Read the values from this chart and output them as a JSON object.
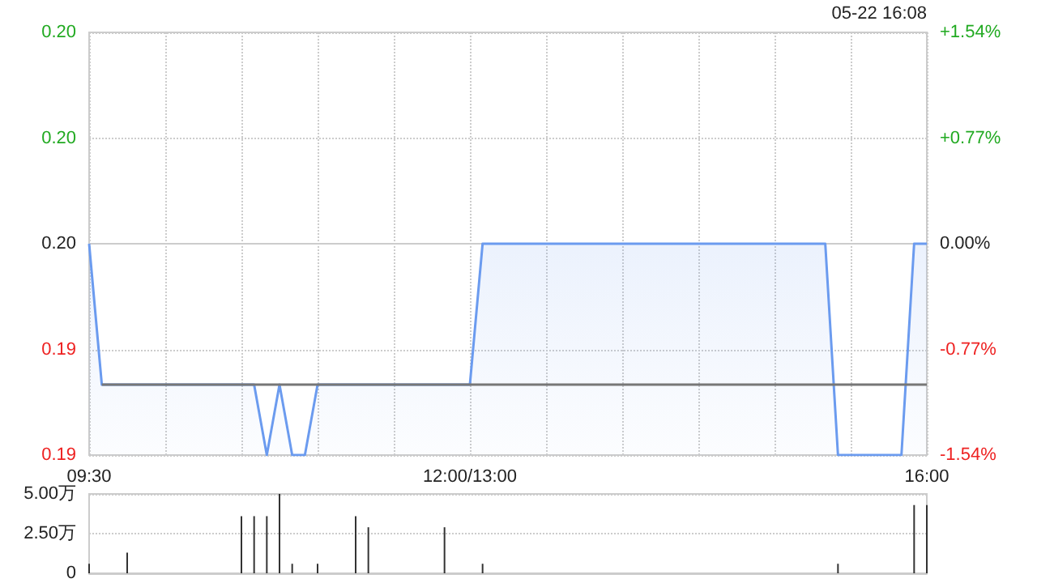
{
  "chart_data": [
    {
      "type": "area",
      "annotations": [
        "05-22 16:08"
      ],
      "grid": true,
      "marker": "none",
      "categories": [
        "09:30",
        null,
        null,
        null,
        null,
        null,
        null,
        null,
        null,
        null,
        null,
        null,
        null,
        null,
        null,
        null,
        null,
        null,
        null,
        null,
        null,
        null,
        null,
        null,
        null,
        null,
        null,
        null,
        null,
        null,
        "12:00/13:00",
        null,
        null,
        null,
        null,
        null,
        null,
        null,
        null,
        null,
        null,
        null,
        null,
        null,
        null,
        null,
        null,
        null,
        null,
        null,
        null,
        null,
        null,
        null,
        null,
        null,
        null,
        null,
        null,
        null,
        null,
        null,
        null,
        null,
        null,
        null,
        "16:00"
      ],
      "ylim": [
        0.192,
        0.198
      ],
      "yticks": [
        {
          "value": 0.192,
          "label": "0.19"
        },
        {
          "value": 0.1935,
          "label": "0.19"
        },
        {
          "value": 0.195,
          "label": "0.20"
        },
        {
          "value": 0.1965,
          "label": "0.20"
        },
        {
          "value": 0.198,
          "label": "0.20"
        }
      ],
      "y2lim": [
        -1.54,
        1.54
      ],
      "y2ticks": [
        {
          "value": -1.54,
          "label": "-1.54%"
        },
        {
          "value": -0.77,
          "label": "-0.77%"
        },
        {
          "value": 0,
          "label": "0.00%"
        },
        {
          "value": 0.77,
          "label": "+0.77%"
        },
        {
          "value": 1.54,
          "label": "+1.54%"
        }
      ],
      "series": [
        {
          "color": "#6b9bef",
          "values": [
            0.195,
            0.193,
            0.193,
            0.193,
            0.193,
            0.193,
            0.193,
            0.193,
            0.193,
            0.193,
            0.193,
            0.193,
            0.193,
            0.193,
            0.192,
            0.193,
            0.192,
            0.192,
            0.193,
            0.193,
            0.193,
            0.193,
            0.193,
            0.193,
            0.193,
            0.193,
            0.193,
            0.193,
            0.193,
            0.193,
            0.193,
            0.195,
            0.195,
            0.195,
            0.195,
            0.195,
            0.195,
            0.195,
            0.195,
            0.195,
            0.195,
            0.195,
            0.195,
            0.195,
            0.195,
            0.195,
            0.195,
            0.195,
            0.195,
            0.195,
            0.195,
            0.195,
            0.195,
            0.195,
            0.195,
            0.195,
            0.195,
            0.195,
            0.195,
            0.192,
            0.192,
            0.192,
            0.192,
            0.192,
            0.192,
            0.195,
            0.195
          ]
        },
        {
          "type": "line",
          "color": "#777777",
          "values": [
            null,
            0.193,
            0.193,
            0.193,
            0.193,
            0.193,
            0.193,
            0.193,
            0.193,
            0.193,
            0.193,
            0.193,
            0.193,
            0.193,
            0.193,
            0.193,
            0.193,
            0.193,
            0.193,
            0.193,
            0.193,
            0.193,
            0.193,
            0.193,
            0.193,
            0.193,
            0.193,
            0.193,
            0.193,
            0.193,
            0.193,
            0.193,
            0.193,
            0.193,
            0.193,
            0.193,
            0.193,
            0.193,
            0.193,
            0.193,
            0.193,
            0.193,
            0.193,
            0.193,
            0.193,
            0.193,
            0.193,
            0.193,
            0.193,
            0.193,
            0.193,
            0.193,
            0.193,
            0.193,
            0.193,
            0.193,
            0.193,
            0.193,
            0.193,
            0.193,
            0.193,
            0.193,
            0.193,
            0.193,
            0.193,
            0.193,
            0.193
          ]
        }
      ]
    },
    {
      "type": "bar",
      "color": "#333333",
      "grid": "y",
      "tick_labels": "y",
      "categories": [
        null,
        null,
        null,
        null,
        null,
        null,
        null,
        null,
        null,
        null,
        null,
        null,
        null,
        null,
        null,
        null,
        null,
        null,
        null,
        null,
        null,
        null,
        null,
        null,
        null,
        null,
        null,
        null,
        null,
        null,
        null,
        null,
        null,
        null,
        null,
        null,
        null,
        null,
        null,
        null,
        null,
        null,
        null,
        null,
        null,
        null,
        null,
        null,
        null,
        null,
        null,
        null,
        null,
        null,
        null,
        null,
        null,
        null,
        null,
        null,
        null,
        null,
        null,
        null,
        null,
        null,
        null
      ],
      "ylim": [
        0,
        5
      ],
      "yticks": [
        {
          "value": 0,
          "label": "0"
        },
        {
          "value": 2.5,
          "label": "2.50万"
        },
        {
          "value": 5,
          "label": "5.00万"
        }
      ],
      "values": [
        0.6,
        null,
        null,
        1.3,
        null,
        null,
        null,
        null,
        null,
        null,
        null,
        null,
        3.6,
        3.6,
        3.6,
        5.0,
        0.6,
        null,
        0.6,
        null,
        null,
        3.6,
        2.9,
        null,
        null,
        null,
        null,
        null,
        2.9,
        null,
        null,
        0.6,
        null,
        null,
        null,
        null,
        null,
        null,
        null,
        null,
        null,
        null,
        null,
        null,
        null,
        null,
        null,
        null,
        null,
        null,
        null,
        null,
        null,
        null,
        null,
        null,
        null,
        null,
        null,
        0.6,
        null,
        null,
        null,
        null,
        null,
        4.3,
        4.3
      ]
    }
  ]
}
